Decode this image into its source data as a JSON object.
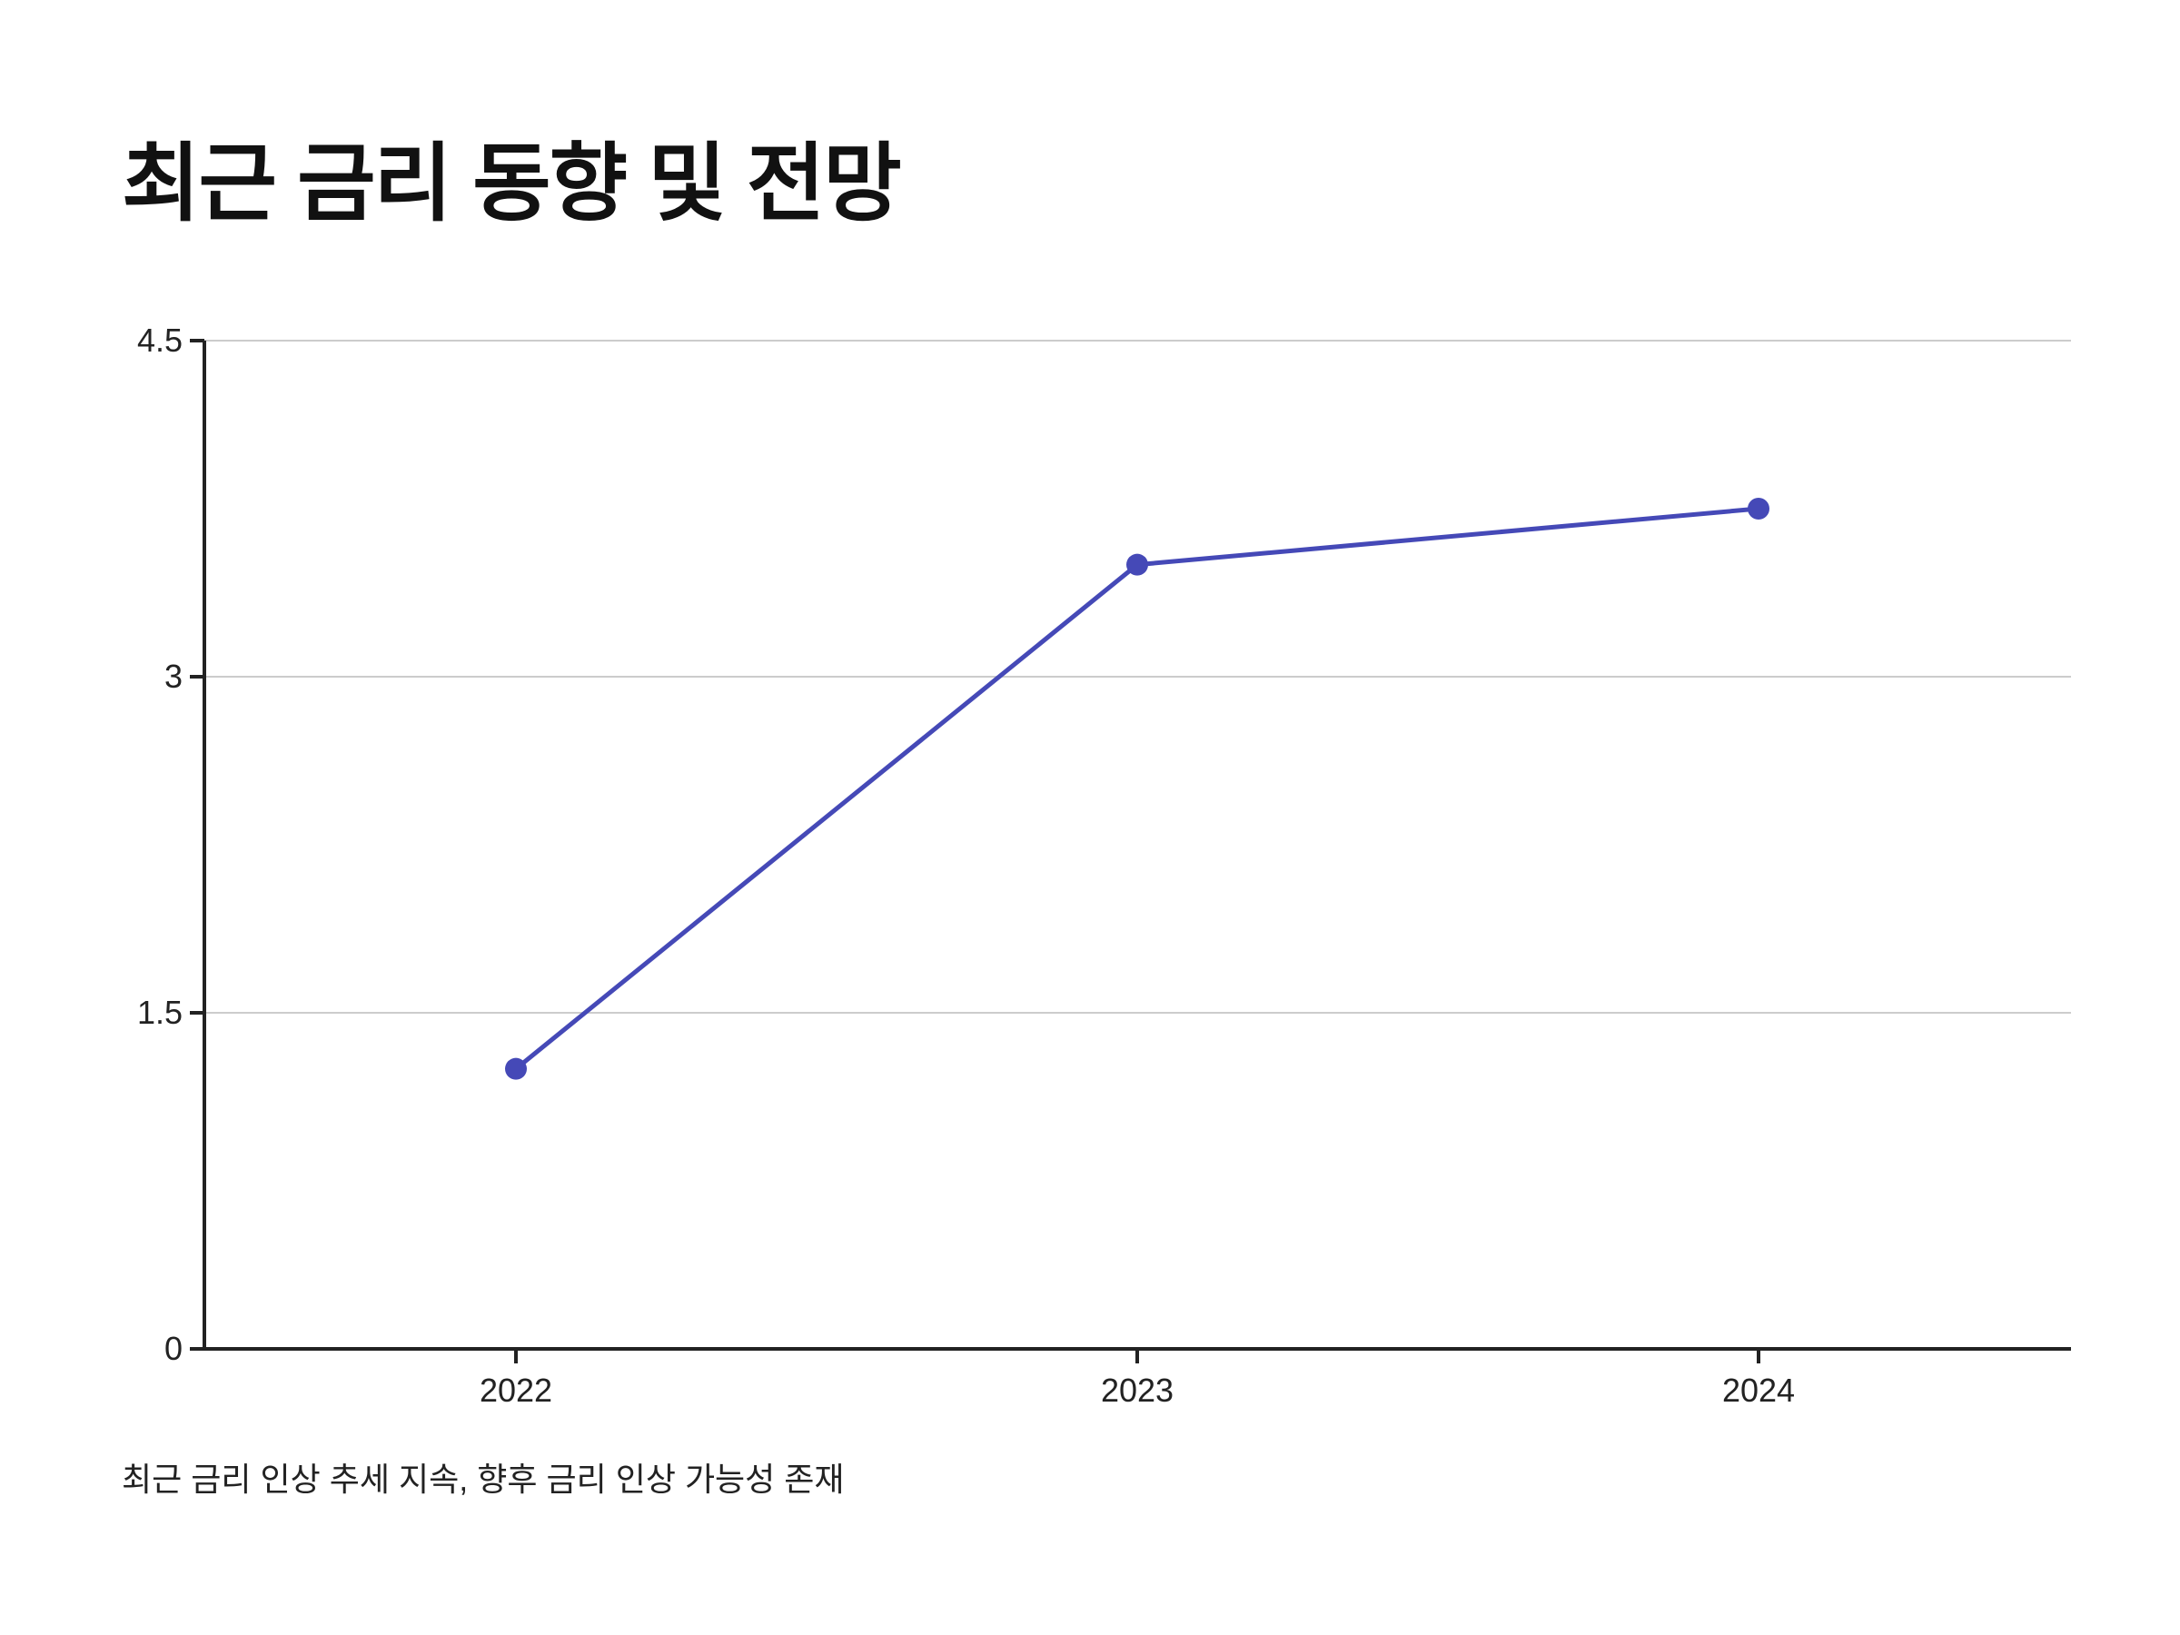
{
  "title": "최근 금리 동향 및 전망",
  "footnote": "최근 금리 인상 추세 지속, 향후 금리 인상 가능성 존재",
  "colors": {
    "series": "#4549b7",
    "axis": "#222222",
    "grid": "#cccccc",
    "text": "#111111"
  },
  "chart_data": {
    "type": "line",
    "title": "최근 금리 동향 및 전망",
    "xlabel": "",
    "ylabel": "",
    "categories": [
      "2022",
      "2023",
      "2024"
    ],
    "series": [
      {
        "values": [
          1.25,
          3.5,
          3.75
        ]
      }
    ],
    "ylim": [
      0,
      4.5
    ],
    "yticks": [
      0,
      1.5,
      3,
      4.5
    ],
    "ytick_labels": [
      "0",
      "1.5",
      "3",
      "4.5"
    ],
    "grid": "horizontal",
    "legend": "none"
  }
}
